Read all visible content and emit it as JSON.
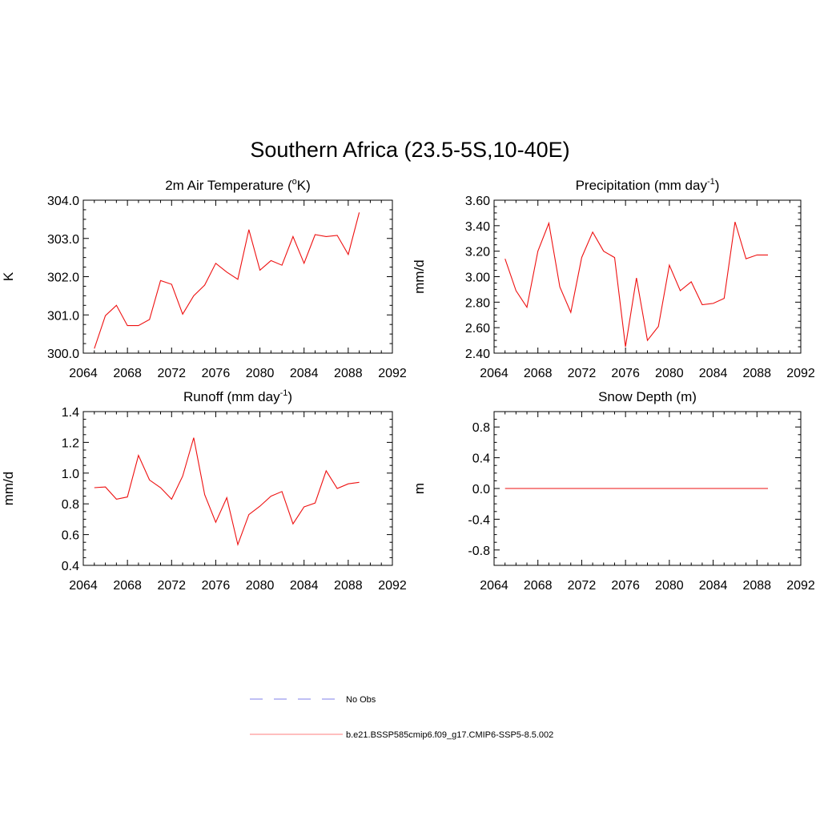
{
  "title": "Southern Africa (23.5-5S,10-40E)",
  "colors": {
    "model": "#ee1111",
    "obs": "#9999ee",
    "axis": "#000000"
  },
  "legend": {
    "obs_label": "No Obs",
    "model_label": "b.e21.BSSP585cmip6.f09_g17.CMIP6-SSP5-8.5.002"
  },
  "chart_data": [
    {
      "type": "line",
      "title": "2m Air Temperature (°K)",
      "title_main": "2m Air Temperature (",
      "title_sup_prefix": "o",
      "title_rest": "K)",
      "ylabel": "K",
      "xlim": [
        2064,
        2092
      ],
      "ylim": [
        300.0,
        304.0
      ],
      "xticks": [
        2064,
        2068,
        2072,
        2076,
        2080,
        2084,
        2088,
        2092
      ],
      "yticks": [
        300.0,
        301.0,
        302.0,
        303.0,
        304.0
      ],
      "ytick_labels": [
        "300.0",
        "301.0",
        "302.0",
        "303.0",
        "304.0"
      ],
      "x": [
        2065,
        2066,
        2067,
        2068,
        2069,
        2070,
        2071,
        2072,
        2073,
        2074,
        2075,
        2076,
        2077,
        2078,
        2079,
        2080,
        2081,
        2082,
        2083,
        2084,
        2085,
        2086,
        2087,
        2088,
        2089
      ],
      "series": [
        {
          "name": "b.e21.BSSP585cmip6.f09_g17.CMIP6-SSP5-8.5.002",
          "values": [
            300.12,
            300.98,
            301.25,
            300.72,
            300.72,
            300.88,
            301.9,
            301.8,
            301.02,
            301.5,
            301.78,
            302.35,
            302.12,
            301.93,
            303.23,
            302.17,
            302.42,
            302.3,
            303.05,
            302.35,
            303.1,
            303.05,
            303.08,
            302.58,
            303.68
          ]
        }
      ]
    },
    {
      "type": "line",
      "title": "Precipitation (mm day-1)",
      "title_main": "Precipitation (mm day",
      "title_sup": "-1",
      "title_rest": ")",
      "ylabel": "mm/d",
      "xlim": [
        2064,
        2092
      ],
      "ylim": [
        2.4,
        3.6
      ],
      "xticks": [
        2064,
        2068,
        2072,
        2076,
        2080,
        2084,
        2088,
        2092
      ],
      "yticks": [
        2.4,
        2.6,
        2.8,
        3.0,
        3.2,
        3.4,
        3.6
      ],
      "ytick_labels": [
        "2.40",
        "2.60",
        "2.80",
        "3.00",
        "3.20",
        "3.40",
        "3.60"
      ],
      "x": [
        2065,
        2066,
        2067,
        2068,
        2069,
        2070,
        2071,
        2072,
        2073,
        2074,
        2075,
        2076,
        2077,
        2078,
        2079,
        2080,
        2081,
        2082,
        2083,
        2084,
        2085,
        2086,
        2087,
        2088,
        2089
      ],
      "series": [
        {
          "name": "b.e21.BSSP585cmip6.f09_g17.CMIP6-SSP5-8.5.002",
          "values": [
            3.14,
            2.89,
            2.76,
            3.2,
            3.42,
            2.92,
            2.72,
            3.15,
            3.35,
            3.2,
            3.15,
            2.45,
            2.99,
            2.5,
            2.61,
            3.09,
            2.89,
            2.96,
            2.78,
            2.79,
            2.83,
            3.43,
            3.14,
            3.17,
            3.17
          ]
        }
      ]
    },
    {
      "type": "line",
      "title": "Runoff (mm day-1)",
      "title_main": "Runoff (mm day",
      "title_sup": "-1",
      "title_rest": ")",
      "ylabel": "mm/d",
      "xlim": [
        2064,
        2092
      ],
      "ylim": [
        0.4,
        1.4
      ],
      "xticks": [
        2064,
        2068,
        2072,
        2076,
        2080,
        2084,
        2088,
        2092
      ],
      "yticks": [
        0.4,
        0.6,
        0.8,
        1.0,
        1.2,
        1.4
      ],
      "ytick_labels": [
        "0.4",
        "0.6",
        "0.8",
        "1.0",
        "1.2",
        "1.4"
      ],
      "x": [
        2065,
        2066,
        2067,
        2068,
        2069,
        2070,
        2071,
        2072,
        2073,
        2074,
        2075,
        2076,
        2077,
        2078,
        2079,
        2080,
        2081,
        2082,
        2083,
        2084,
        2085,
        2086,
        2087,
        2088,
        2089
      ],
      "series": [
        {
          "name": "b.e21.BSSP585cmip6.f09_g17.CMIP6-SSP5-8.5.002",
          "values": [
            0.905,
            0.91,
            0.83,
            0.845,
            1.115,
            0.955,
            0.905,
            0.83,
            0.98,
            1.23,
            0.86,
            0.68,
            0.84,
            0.535,
            0.73,
            0.785,
            0.85,
            0.88,
            0.67,
            0.78,
            0.805,
            1.015,
            0.9,
            0.93,
            0.94
          ]
        }
      ]
    },
    {
      "type": "line",
      "title": "Snow Depth (m)",
      "title_main": "Snow Depth (m)",
      "ylabel": "m",
      "xlim": [
        2064,
        2092
      ],
      "ylim": [
        -1.0,
        1.0
      ],
      "xticks": [
        2064,
        2068,
        2072,
        2076,
        2080,
        2084,
        2088,
        2092
      ],
      "yticks": [
        -0.8,
        -0.4,
        0.0,
        0.4,
        0.8
      ],
      "ytick_labels": [
        "-0.8",
        "-0.4",
        "0.0",
        "0.4",
        "0.8"
      ],
      "x": [
        2065,
        2066,
        2067,
        2068,
        2069,
        2070,
        2071,
        2072,
        2073,
        2074,
        2075,
        2076,
        2077,
        2078,
        2079,
        2080,
        2081,
        2082,
        2083,
        2084,
        2085,
        2086,
        2087,
        2088,
        2089
      ],
      "series": [
        {
          "name": "b.e21.BSSP585cmip6.f09_g17.CMIP6-SSP5-8.5.002",
          "values": [
            0,
            0,
            0,
            0,
            0,
            0,
            0,
            0,
            0,
            0,
            0,
            0,
            0,
            0,
            0,
            0,
            0,
            0,
            0,
            0,
            0,
            0,
            0,
            0,
            0
          ]
        }
      ]
    }
  ]
}
